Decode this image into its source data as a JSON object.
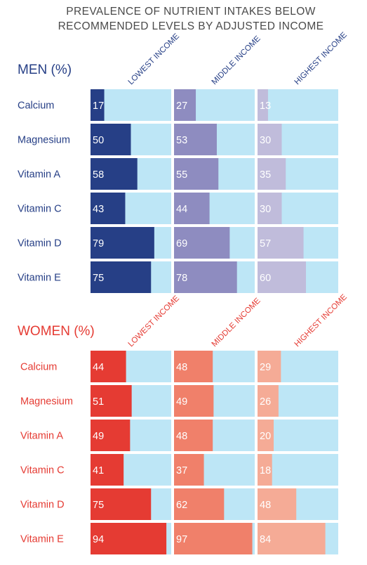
{
  "title_line1": "PREVALENCE OF NUTRIENT INTAKES BELOW",
  "title_line2": "RECOMMENDED LEVELS BY ADJUSTED INCOME",
  "colors": {
    "track": "#bde6f6",
    "men": [
      "#263f86",
      "#8e8cc0",
      "#c0bcdb"
    ],
    "men_text": "#263f86",
    "women": [
      "#e53b33",
      "#f0806a",
      "#f5ab96"
    ],
    "women_text": "#e53b33"
  },
  "chart_data": [
    {
      "type": "bar",
      "title": "MEN (%)",
      "categories": [
        "Calcium",
        "Magnesium",
        "Vitamin A",
        "Vitamin C",
        "Vitamin D",
        "Vitamin E"
      ],
      "series": [
        {
          "name": "LOWEST INCOME",
          "values": [
            17,
            50,
            58,
            43,
            79,
            75
          ]
        },
        {
          "name": "MIDDLE INCOME",
          "values": [
            27,
            53,
            55,
            44,
            69,
            78
          ]
        },
        {
          "name": "HIGHEST INCOME",
          "values": [
            13,
            30,
            35,
            30,
            57,
            60
          ]
        }
      ],
      "xlim": [
        0,
        100
      ]
    },
    {
      "type": "bar",
      "title": "WOMEN (%)",
      "categories": [
        "Calcium",
        "Magnesium",
        "Vitamin A",
        "Vitamin C",
        "Vitamin D",
        "Vitamin E"
      ],
      "series": [
        {
          "name": "LOWEST INCOME",
          "values": [
            44,
            51,
            49,
            41,
            75,
            94
          ]
        },
        {
          "name": "MIDDLE INCOME",
          "values": [
            48,
            49,
            48,
            37,
            62,
            97
          ]
        },
        {
          "name": "HIGHEST INCOME",
          "values": [
            29,
            26,
            20,
            18,
            48,
            84
          ]
        }
      ],
      "xlim": [
        0,
        100
      ]
    }
  ]
}
